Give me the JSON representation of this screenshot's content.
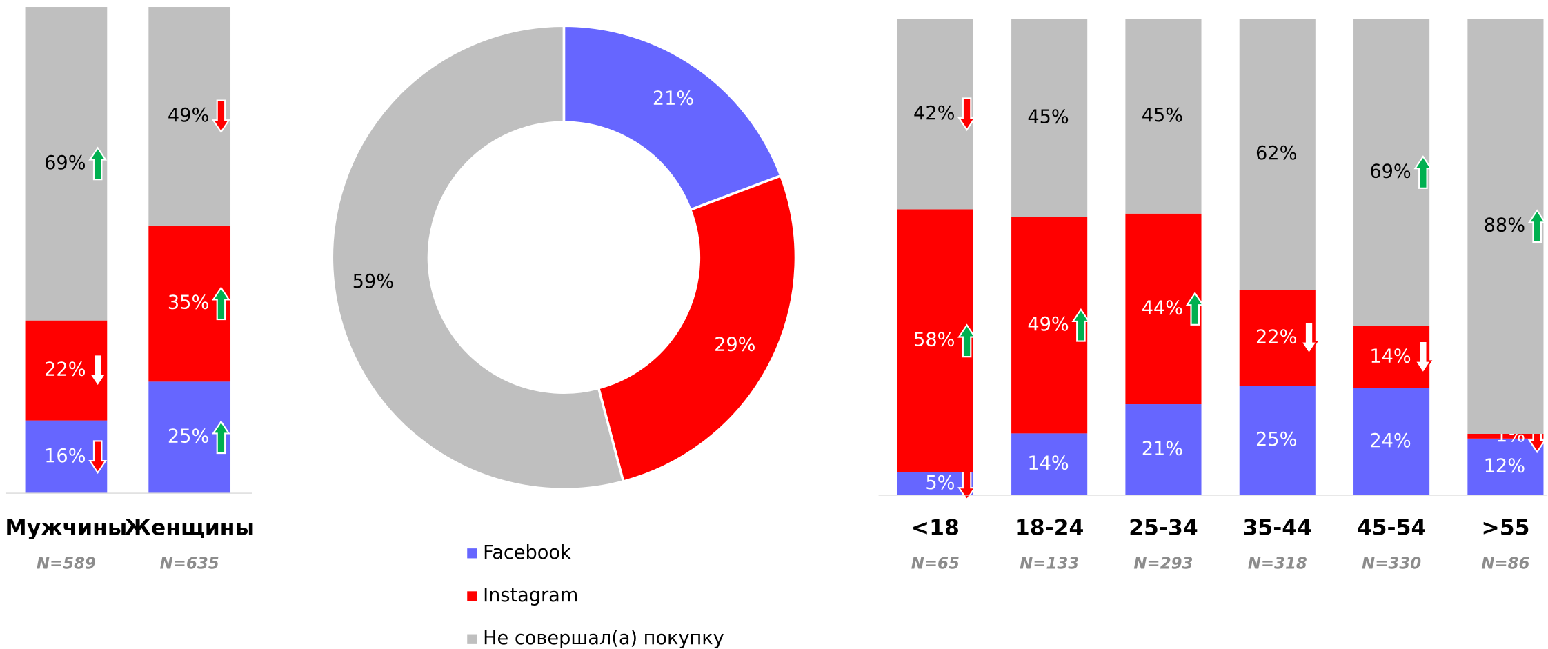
{
  "chart_data": [
    {
      "type": "bar",
      "stacked": "percent",
      "categories": [
        "Мужчины",
        "Женщины"
      ],
      "sample_sizes": [
        "N=589",
        "N=635"
      ],
      "series": [
        {
          "color": "#6666ff",
          "values": [
            16,
            25
          ],
          "markers": [
            "down",
            "up"
          ]
        },
        {
          "color": "#ff0000",
          "values": [
            22,
            35
          ],
          "markers": [
            "down-outline",
            "up"
          ]
        },
        {
          "color": "#bfbfbf",
          "values": [
            69,
            49
          ],
          "markers": [
            "up",
            "down"
          ]
        }
      ]
    },
    {
      "type": "pie",
      "hole": true,
      "categories": [
        "Facebook",
        "Instagram",
        "Не совершал(а) покупку"
      ],
      "values": [
        21,
        29,
        59
      ],
      "colors": [
        "#6666ff",
        "#ff0000",
        "#bfbfbf"
      ]
    },
    {
      "type": "bar",
      "stacked": "percent",
      "categories": [
        "<18",
        "18-24",
        "25-34",
        "35-44",
        "45-54",
        ">55"
      ],
      "sample_sizes": [
        "N=65",
        "N=133",
        "N=293",
        "N=318",
        "N=330",
        "N=86"
      ],
      "series": [
        {
          "color": "#6666ff",
          "values": [
            5,
            14,
            21,
            25,
            24,
            12
          ],
          "markers": [
            "down",
            null,
            null,
            null,
            null,
            null
          ]
        },
        {
          "color": "#ff0000",
          "values": [
            58,
            49,
            44,
            22,
            14,
            1
          ],
          "markers": [
            "up",
            "up",
            "up",
            "down-outline",
            "down-outline",
            "down"
          ]
        },
        {
          "color": "#bfbfbf",
          "values": [
            42,
            45,
            45,
            62,
            69,
            88
          ],
          "markers": [
            "down",
            null,
            null,
            null,
            "up",
            "up"
          ]
        }
      ]
    }
  ]
}
